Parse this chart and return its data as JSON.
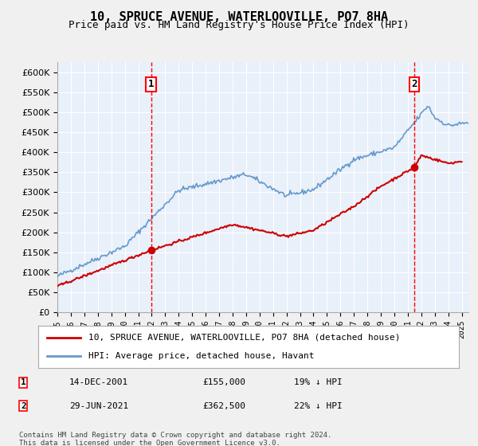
{
  "title": "10, SPRUCE AVENUE, WATERLOOVILLE, PO7 8HA",
  "subtitle": "Price paid vs. HM Land Registry's House Price Index (HPI)",
  "ylabel_ticks": [
    "£0",
    "£50K",
    "£100K",
    "£150K",
    "£200K",
    "£250K",
    "£300K",
    "£350K",
    "£400K",
    "£450K",
    "£500K",
    "£550K",
    "£600K"
  ],
  "ytick_values": [
    0,
    50000,
    100000,
    150000,
    200000,
    250000,
    300000,
    350000,
    400000,
    450000,
    500000,
    550000,
    600000
  ],
  "ylim": [
    0,
    625000
  ],
  "background_color": "#dce9f5",
  "plot_bg": "#e8f0fa",
  "grid_color": "#ffffff",
  "red_line_color": "#cc0000",
  "blue_line_color": "#6699cc",
  "sale1": {
    "date_num": 2001.95,
    "price": 155000,
    "label": "1"
  },
  "sale2": {
    "date_num": 2021.49,
    "price": 362500,
    "label": "2"
  },
  "legend_label_red": "10, SPRUCE AVENUE, WATERLOOVILLE, PO7 8HA (detached house)",
  "legend_label_blue": "HPI: Average price, detached house, Havant",
  "table_rows": [
    {
      "num": "1",
      "date": "14-DEC-2001",
      "price": "£155,000",
      "hpi": "19% ↓ HPI"
    },
    {
      "num": "2",
      "date": "29-JUN-2021",
      "price": "£362,500",
      "hpi": "22% ↓ HPI"
    }
  ],
  "footer": "Contains HM Land Registry data © Crown copyright and database right 2024.\nThis data is licensed under the Open Government Licence v3.0.",
  "xmin": 1995.0,
  "xmax": 2025.5
}
